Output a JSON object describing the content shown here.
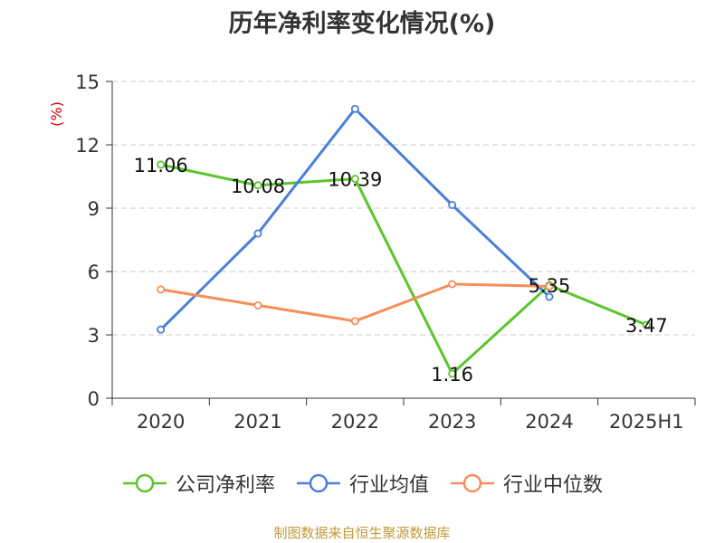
{
  "chart_data": {
    "type": "line",
    "title": "历年净利率变化情况(%)",
    "ylabel": "(%)",
    "categories": [
      "2020",
      "2021",
      "2022",
      "2023",
      "2024",
      "2025H1"
    ],
    "ylim": [
      0,
      15
    ],
    "yticks": [
      "0",
      "3",
      "6",
      "9",
      "12",
      "15"
    ],
    "grid": true,
    "legend_position": "bottom",
    "series": [
      {
        "name": "公司净利率",
        "color": "#5cc52c",
        "values": [
          11.06,
          10.08,
          10.39,
          1.16,
          5.35,
          3.47
        ],
        "labels": [
          "11.06",
          "10.08",
          "10.39",
          "1.16",
          "5.35",
          "3.47"
        ]
      },
      {
        "name": "行业均值",
        "color": "#4a7fdc",
        "values": [
          3.25,
          7.8,
          13.7,
          9.15,
          4.8,
          null
        ]
      },
      {
        "name": "行业中位数",
        "color": "#f78e5a",
        "values": [
          5.15,
          4.4,
          3.65,
          5.4,
          5.3,
          null
        ]
      }
    ]
  },
  "source": "制图数据来自恒生聚源数据库"
}
